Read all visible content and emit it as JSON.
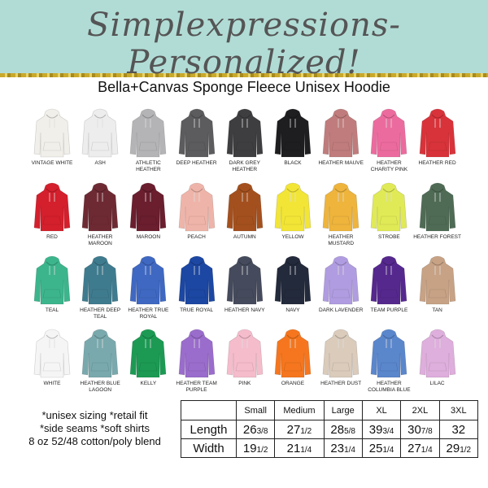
{
  "brand": "Simplexpressions- Personalized!",
  "title": "Bella+Canvas Sponge Fleece Unisex Hoodie",
  "colors": [
    {
      "label": "VINTAGE WHITE",
      "hex": "#f1efe9"
    },
    {
      "label": "ASH",
      "hex": "#ededee"
    },
    {
      "label": "ATHLETIC HEATHER",
      "hex": "#b4b4b6"
    },
    {
      "label": "DEEP HEATHER",
      "hex": "#5c5c5e"
    },
    {
      "label": "DARK GREY HEATHER",
      "hex": "#3e3e40"
    },
    {
      "label": "BLACK",
      "hex": "#1e1e20"
    },
    {
      "label": "HEATHER MAUVE",
      "hex": "#c07c7c"
    },
    {
      "label": "HEATHER CHARITY PINK",
      "hex": "#ec6b9e"
    },
    {
      "label": "HEATHER RED",
      "hex": "#d8333a"
    },
    {
      "label": "RED",
      "hex": "#d41f2c"
    },
    {
      "label": "HEATHER MAROON",
      "hex": "#6e2a33"
    },
    {
      "label": "MAROON",
      "hex": "#6a1e2e"
    },
    {
      "label": "PEACH",
      "hex": "#efb4a9"
    },
    {
      "label": "AUTUMN",
      "hex": "#a4501e"
    },
    {
      "label": "YELLOW",
      "hex": "#f2e536"
    },
    {
      "label": "HEATHER MUSTARD",
      "hex": "#eeb43c"
    },
    {
      "label": "STROBE",
      "hex": "#e0ea56"
    },
    {
      "label": "HEATHER FOREST",
      "hex": "#4f6b55"
    },
    {
      "label": "TEAL",
      "hex": "#3cb58c"
    },
    {
      "label": "HEATHER DEEP TEAL",
      "hex": "#3f7b8e"
    },
    {
      "label": "HEATHER TRUE ROYAL",
      "hex": "#3f68c2"
    },
    {
      "label": "TRUE ROYAL",
      "hex": "#1c47a2"
    },
    {
      "label": "HEATHER NAVY",
      "hex": "#454b5c"
    },
    {
      "label": "NAVY",
      "hex": "#232a3b"
    },
    {
      "label": "DARK LAVENDER",
      "hex": "#b09ce0"
    },
    {
      "label": "TEAM PURPLE",
      "hex": "#55288e"
    },
    {
      "label": "TAN",
      "hex": "#c7a285"
    },
    {
      "label": "WHITE",
      "hex": "#f5f5f5"
    },
    {
      "label": "HEATHER BLUE LAGOON",
      "hex": "#79a9ad"
    },
    {
      "label": "KELLY",
      "hex": "#1c9a54"
    },
    {
      "label": "HEATHER TEAM PURPLE",
      "hex": "#9a6ccc"
    },
    {
      "label": "PINK",
      "hex": "#f5bccc"
    },
    {
      "label": "ORANGE",
      "hex": "#f5761e"
    },
    {
      "label": "HEATHER DUST",
      "hex": "#dacbbb"
    },
    {
      "label": "HEATHER COLUMBIA BLUE",
      "hex": "#5a86cc"
    },
    {
      "label": "LILAC",
      "hex": "#deaedc"
    }
  ],
  "notes": [
    "*unisex sizing *retail fit",
    "*side seams  *soft shirts",
    "8 oz 52/48 cotton/poly blend"
  ],
  "size_table": {
    "headers": [
      "",
      "Small",
      "Medium",
      "Large",
      "XL",
      "2XL",
      "3XL"
    ],
    "rows": [
      {
        "label": "Length",
        "values": [
          {
            "whole": "26",
            "frac": "3/8"
          },
          {
            "whole": "27",
            "frac": "1/2"
          },
          {
            "whole": "28",
            "frac": "5/8"
          },
          {
            "whole": "39",
            "frac": "3/4"
          },
          {
            "whole": "30",
            "frac": "7/8"
          },
          {
            "whole": "32",
            "frac": ""
          }
        ]
      },
      {
        "label": "Width",
        "values": [
          {
            "whole": "19",
            "frac": "1/2"
          },
          {
            "whole": "21",
            "frac": "1/4"
          },
          {
            "whole": "23",
            "frac": "1/4"
          },
          {
            "whole": "25",
            "frac": "1/4"
          },
          {
            "whole": "27",
            "frac": "1/4"
          },
          {
            "whole": "29",
            "frac": "1/2"
          }
        ]
      }
    ]
  }
}
